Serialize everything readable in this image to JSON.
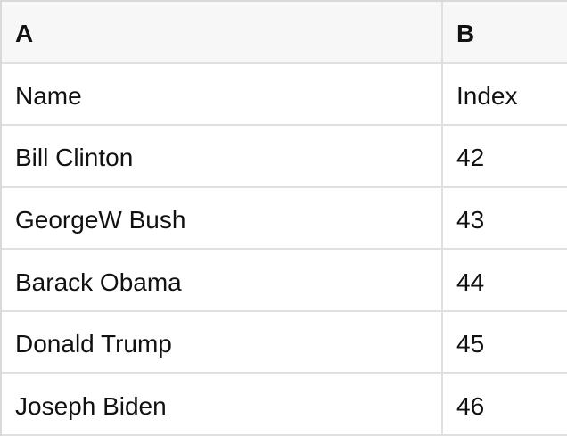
{
  "colors": {
    "header-bg": "#f7f7f7",
    "grid-line": "#e0e0e0",
    "outer-border": "#d9d9d9",
    "cell-bg": "#ffffff",
    "text-color": "#111111"
  },
  "table": {
    "columns": [
      {
        "id": "A",
        "label": "A"
      },
      {
        "id": "B",
        "label": "B"
      }
    ],
    "rows": [
      [
        "Name",
        "Index"
      ],
      [
        "Bill Clinton",
        "42"
      ],
      [
        "GeorgeW Bush",
        "43"
      ],
      [
        "Barack Obama",
        "44"
      ],
      [
        "Donald Trump",
        "45"
      ],
      [
        "Joseph Biden",
        "46"
      ]
    ]
  }
}
